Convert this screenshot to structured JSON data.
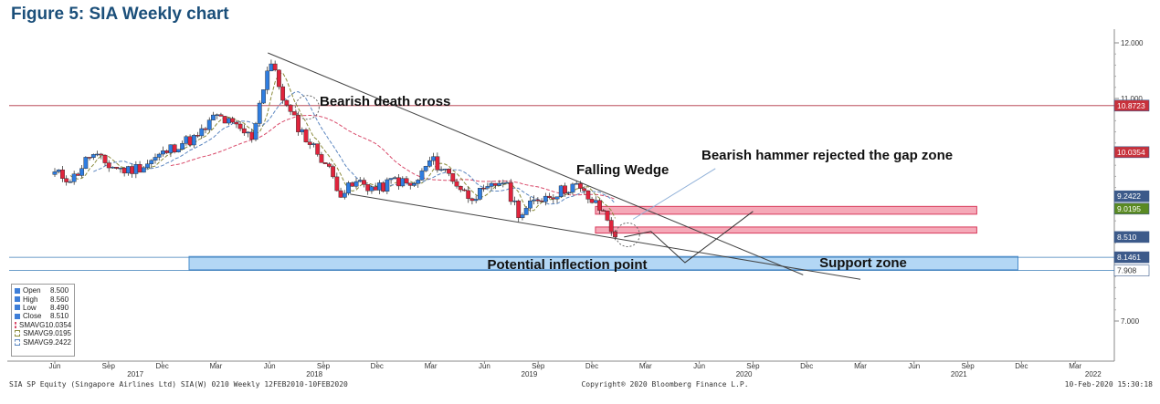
{
  "figure_title": "Figure 5: SIA Weekly chart",
  "chart_data": {
    "type": "candlestick",
    "y_ticks": [
      "12.000",
      "11.000",
      "7.000"
    ],
    "ylim": [
      6.4,
      12.2
    ],
    "x_month_labels": [
      {
        "label": "Jun",
        "t": 0
      },
      {
        "label": "Sep",
        "t": 3
      },
      {
        "label": "Dec",
        "t": 6
      },
      {
        "label": "Mar",
        "t": 9
      },
      {
        "label": "Jun",
        "t": 12
      },
      {
        "label": "Sep",
        "t": 15
      },
      {
        "label": "Dec",
        "t": 18
      },
      {
        "label": "Mar",
        "t": 21
      },
      {
        "label": "Jun",
        "t": 24
      },
      {
        "label": "Sep",
        "t": 27
      },
      {
        "label": "Dec",
        "t": 30
      },
      {
        "label": "Mar",
        "t": 33
      },
      {
        "label": "Jun",
        "t": 36
      },
      {
        "label": "Sep",
        "t": 39
      },
      {
        "label": "Dec",
        "t": 42
      },
      {
        "label": "Mar",
        "t": 45
      },
      {
        "label": "Jun",
        "t": 48
      },
      {
        "label": "Sep",
        "t": 51
      },
      {
        "label": "Dec",
        "t": 54
      },
      {
        "label": "Mar",
        "t": 57
      }
    ],
    "x_year_labels": [
      {
        "label": "2017",
        "t": 4.5
      },
      {
        "label": "2018",
        "t": 14.5
      },
      {
        "label": "2019",
        "t": 26.5
      },
      {
        "label": "2020",
        "t": 38.5
      },
      {
        "label": "2021",
        "t": 50.5
      },
      {
        "label": "2022",
        "t": 58
      }
    ],
    "price_path": [
      [
        0,
        9.65
      ],
      [
        1,
        9.55
      ],
      [
        2,
        10.0
      ],
      [
        3,
        9.8
      ],
      [
        4,
        9.7
      ],
      [
        5,
        9.8
      ],
      [
        6,
        10.0
      ],
      [
        7,
        10.2
      ],
      [
        8,
        10.3
      ],
      [
        9,
        10.7
      ],
      [
        10,
        10.5
      ],
      [
        11,
        10.3
      ],
      [
        12,
        11.7
      ],
      [
        13,
        10.8
      ],
      [
        14,
        10.3
      ],
      [
        15,
        9.9
      ],
      [
        16,
        9.3
      ],
      [
        17,
        9.5
      ],
      [
        18,
        9.35
      ],
      [
        19,
        9.55
      ],
      [
        20,
        9.4
      ],
      [
        21,
        9.9
      ],
      [
        22,
        9.65
      ],
      [
        23,
        9.25
      ],
      [
        24,
        9.3
      ],
      [
        25,
        9.55
      ],
      [
        26,
        8.9
      ],
      [
        27,
        9.2
      ],
      [
        28,
        9.3
      ],
      [
        29,
        9.45
      ],
      [
        30,
        9.15
      ],
      [
        30.8,
        8.9
      ],
      [
        31.3,
        8.51
      ]
    ],
    "current_bar": {
      "open": "8.500",
      "high": "8.560",
      "low": "8.490",
      "close": "8.510"
    },
    "moving_averages": [
      {
        "label": "SMAVG",
        "value": "10.0354",
        "color": "#d94a6a",
        "style": "dashed"
      },
      {
        "label": "SMAVG",
        "value": "9.0195",
        "color": "#8a8a3a",
        "style": "dashed"
      },
      {
        "label": "SMAVG",
        "value": "9.2422",
        "color": "#5b86c0",
        "style": "dashed"
      }
    ],
    "price_labels": [
      {
        "value": 10.8723,
        "text": "10.8723",
        "bg": "#c8323c",
        "fg": "#ffffff"
      },
      {
        "value": 10.0354,
        "text": "10.0354",
        "bg": "#c8323c",
        "fg": "#ffffff"
      },
      {
        "value": 9.2422,
        "text": "9.2422",
        "bg": "#3c5a8a",
        "fg": "#ffffff"
      },
      {
        "value": 9.0195,
        "text": "9.0195",
        "bg": "#5a8a22",
        "fg": "#ffffff"
      },
      {
        "value": 8.51,
        "text": "8.510",
        "bg": "#3c5a8a",
        "fg": "#ffffff"
      },
      {
        "value": 8.1461,
        "text": "8.1461",
        "bg": "#3c5a8a",
        "fg": "#ffffff"
      },
      {
        "value": 7.908,
        "text": "7.908",
        "bg": "#ffffff",
        "fg": "#333333"
      }
    ],
    "horizontal_lines": [
      10.8723,
      8.1461,
      7.908
    ],
    "resistance_zones": [
      {
        "y1": 9.06,
        "y2": 8.92,
        "t_start": 30.2,
        "t_end": 51.5
      },
      {
        "y1": 8.69,
        "y2": 8.58,
        "t_start": 30.2,
        "t_end": 51.5
      }
    ],
    "support_zone": {
      "y1": 8.16,
      "y2": 7.92,
      "t_start": 7.5,
      "t_end": 53.8
    },
    "annotations": {
      "death_cross": "Bearish death cross",
      "hammer": "Bearish hammer rejected the gap zone",
      "wedge": "Falling Wedge",
      "inflection": "Potential inflection point",
      "support": "Support zone"
    }
  },
  "legend": {
    "rows": [
      {
        "name": "Open",
        "value": "8.500",
        "swatch": "#3f7fd8",
        "type": "box"
      },
      {
        "name": "High",
        "value": "8.560",
        "swatch": "#3f7fd8",
        "type": "box"
      },
      {
        "name": "Low",
        "value": "8.490",
        "swatch": "#3f7fd8",
        "type": "box"
      },
      {
        "name": "Close",
        "value": "8.510",
        "swatch": "#3f7fd8",
        "type": "box"
      },
      {
        "name": "SMAVG",
        "value": "10.0354",
        "swatch": "#d94a6a",
        "type": "dash"
      },
      {
        "name": "SMAVG",
        "value": "9.0195",
        "swatch": "#8a8a3a",
        "type": "dash"
      },
      {
        "name": "SMAVG",
        "value": "9.2422",
        "swatch": "#5b86c0",
        "type": "dash"
      }
    ]
  },
  "footer": {
    "left": "SIA SP Equity (Singapore Airlines Ltd) SIA(W) 0210  Weekly 12FEB2010-10FEB2020",
    "center": "Copyright® 2020 Bloomberg Finance L.P.",
    "right": "10-Feb-2020 15:30:18"
  }
}
